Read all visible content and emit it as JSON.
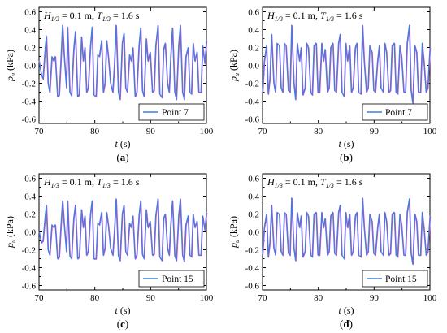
{
  "chart_data": [
    {
      "type": "line",
      "caption": "(a)",
      "annotation": {
        "H": "H",
        "H_sub": "1/3",
        "H_val": " = 0.1 m, ",
        "T": "T",
        "T_sub": "1/3",
        "T_val": " = 1.6 s"
      },
      "xlabel": "t (s)",
      "ylabel": "p_u (kPa)",
      "xlim": [
        70,
        100
      ],
      "ylim": [
        -0.65,
        0.65
      ],
      "xticks": [
        70,
        80,
        90,
        100
      ],
      "yticks": [
        -0.6,
        -0.4,
        -0.2,
        0.0,
        0.2,
        0.4,
        0.6
      ],
      "ytick_labels": [
        "-0.6",
        "-0.4",
        "-0.2",
        "0.0",
        "0.2",
        "0.4",
        "0.6"
      ],
      "legend_position": "bottom-right",
      "series": [
        {
          "name": "Point 7",
          "color": "#3f7fdc",
          "x": [
            70.0,
            70.4,
            70.7,
            71.1,
            71.3,
            71.6,
            71.9,
            72.3,
            72.6,
            72.9,
            73.3,
            73.6,
            73.9,
            74.2,
            74.5,
            74.9,
            75.1,
            75.5,
            75.8,
            76.2,
            76.5,
            76.9,
            77.2,
            77.6,
            77.9,
            78.2,
            78.5,
            78.8,
            79.2,
            79.5,
            79.8,
            80.2,
            80.5,
            80.8,
            81.2,
            81.5,
            81.8,
            82.1,
            82.4,
            82.8,
            83.2,
            83.5,
            83.8,
            84.2,
            84.5,
            84.9,
            85.2,
            85.5,
            85.8,
            86.2,
            86.5,
            86.8,
            87.2,
            87.5,
            87.9,
            88.2,
            88.5,
            88.8,
            89.2,
            89.5,
            89.9,
            90.3,
            90.6,
            90.9,
            91.3,
            91.6,
            92.0,
            92.3,
            92.6,
            93.0,
            93.3,
            93.6,
            93.9,
            94.3,
            94.6,
            95.0,
            95.3,
            95.7,
            96.0,
            96.3,
            96.7,
            97.0,
            97.3,
            97.6,
            97.9,
            98.3,
            98.6,
            99.0,
            99.3,
            99.7,
            100.0
          ],
          "y": [
            0.05,
            -0.1,
            -0.15,
            0.2,
            0.33,
            -0.2,
            -0.3,
            0.1,
            0.05,
            0.1,
            -0.35,
            -0.33,
            0.05,
            0.45,
            0.1,
            -0.25,
            0.43,
            -0.3,
            -0.34,
            0.18,
            0.38,
            -0.35,
            -0.33,
            0.32,
            0.05,
            0.2,
            -0.3,
            -0.25,
            0.22,
            0.43,
            -0.33,
            -0.35,
            0.12,
            0.1,
            0.28,
            -0.3,
            -0.2,
            0.28,
            0.1,
            -0.2,
            -0.3,
            0.02,
            0.45,
            -0.3,
            -0.38,
            0.25,
            0.36,
            -0.25,
            -0.3,
            0.12,
            0.05,
            0.2,
            -0.35,
            -0.3,
            0.22,
            0.42,
            -0.28,
            -0.35,
            0.3,
            0.05,
            0.15,
            -0.3,
            -0.28,
            0.22,
            0.45,
            -0.32,
            -0.36,
            0.18,
            0.25,
            -0.2,
            -0.3,
            0.12,
            0.42,
            -0.3,
            -0.38,
            0.22,
            0.45,
            -0.3,
            -0.38,
            0.1,
            0.2,
            -0.3,
            -0.32,
            0.25,
            0.05,
            0.15,
            -0.3,
            -0.3,
            0.22,
            0.02,
            0.28
          ]
        }
      ]
    },
    {
      "type": "line",
      "caption": "(b)",
      "annotation": {
        "H": "H",
        "H_sub": "1/3",
        "H_val": " = 0.1 m, ",
        "T": "T",
        "T_sub": "1/3",
        "T_val": " = 1.6 s"
      },
      "xlabel": "t (s)",
      "ylabel": "p_u (kPa)",
      "xlim": [
        70,
        100
      ],
      "ylim": [
        -0.65,
        0.65
      ],
      "xticks": [
        70,
        80,
        90,
        100
      ],
      "yticks": [
        -0.6,
        -0.4,
        -0.2,
        0.0,
        0.2,
        0.4,
        0.6
      ],
      "ytick_labels": [
        "-0.6",
        "-0.4",
        "-0.2",
        "0.0",
        "0.2",
        "0.4",
        "0.6"
      ],
      "legend_position": "bottom-right",
      "series": [
        {
          "name": "Point 7",
          "color": "#3f7fdc",
          "x": [
            70.0,
            70.3,
            70.7,
            71.0,
            71.3,
            71.6,
            72.0,
            72.3,
            72.6,
            73.0,
            73.3,
            73.6,
            73.9,
            74.2,
            74.6,
            74.9,
            75.2,
            75.6,
            75.9,
            76.2,
            76.6,
            76.9,
            77.2,
            77.6,
            77.9,
            78.2,
            78.6,
            78.9,
            79.2,
            79.6,
            79.9,
            80.2,
            80.6,
            80.9,
            81.2,
            81.6,
            81.9,
            82.2,
            82.6,
            82.9,
            83.2,
            83.6,
            83.9,
            84.2,
            84.6,
            84.9,
            85.2,
            85.6,
            85.9,
            86.2,
            86.6,
            86.9,
            87.2,
            87.6,
            87.9,
            88.2,
            88.6,
            88.9,
            89.2,
            89.6,
            89.9,
            90.2,
            90.6,
            90.9,
            91.2,
            91.6,
            91.9,
            92.2,
            92.6,
            92.9,
            93.2,
            93.6,
            93.9,
            94.2,
            94.6,
            94.9,
            95.3,
            95.6,
            95.9,
            96.3,
            96.6,
            96.9,
            97.3,
            97.6,
            97.9,
            98.3,
            98.6,
            98.9,
            99.3,
            99.6,
            100.0
          ],
          "y": [
            -0.3,
            0.05,
            0.22,
            -0.32,
            -0.15,
            0.35,
            -0.2,
            -0.3,
            0.25,
            0.22,
            -0.25,
            -0.3,
            0.25,
            0.22,
            -0.28,
            -0.3,
            0.45,
            -0.2,
            -0.38,
            0.25,
            0.05,
            0.2,
            -0.33,
            -0.25,
            0.25,
            0.2,
            -0.3,
            -0.33,
            0.22,
            0.25,
            -0.3,
            -0.3,
            0.25,
            0.05,
            0.18,
            -0.3,
            -0.25,
            0.2,
            0.25,
            -0.28,
            -0.3,
            0.25,
            0.35,
            -0.3,
            -0.35,
            0.25,
            0.05,
            0.22,
            -0.3,
            -0.25,
            0.2,
            0.25,
            -0.3,
            -0.32,
            0.45,
            0.05,
            -0.3,
            -0.25,
            0.22,
            0.15,
            -0.28,
            -0.3,
            0.05,
            0.22,
            -0.25,
            -0.3,
            0.25,
            0.15,
            -0.3,
            -0.28,
            0.22,
            0.25,
            -0.3,
            -0.32,
            0.22,
            0.1,
            -0.3,
            -0.3,
            0.25,
            0.45,
            -0.28,
            -0.42,
            0.22,
            0.15,
            -0.3,
            -0.3,
            0.25,
            0.05,
            -0.3,
            -0.25,
            0.2
          ]
        }
      ]
    },
    {
      "type": "line",
      "caption": "(c)",
      "annotation": {
        "H": "H",
        "H_sub": "1/3",
        "H_val": " = 0.1 m, ",
        "T": "T",
        "T_sub": "1/3",
        "T_val": " = 1.6 s"
      },
      "xlabel": "t (s)",
      "ylabel": "p_u (kPa)",
      "xlim": [
        70,
        100
      ],
      "ylim": [
        -0.65,
        0.65
      ],
      "xticks": [
        70,
        80,
        90,
        100
      ],
      "yticks": [
        -0.6,
        -0.4,
        -0.2,
        0.0,
        0.2,
        0.4,
        0.6
      ],
      "ytick_labels": [
        "-0.6",
        "-0.4",
        "-0.2",
        "0.0",
        "0.2",
        "0.4",
        "0.6"
      ],
      "legend_position": "bottom-right",
      "series": [
        {
          "name": "Point 15",
          "color": "#3f7fdc",
          "x": [
            70.0,
            70.4,
            70.7,
            71.1,
            71.3,
            71.6,
            71.9,
            72.3,
            72.6,
            72.9,
            73.3,
            73.6,
            73.9,
            74.2,
            74.5,
            74.9,
            75.1,
            75.5,
            75.8,
            76.2,
            76.5,
            76.9,
            77.2,
            77.6,
            77.9,
            78.2,
            78.5,
            78.8,
            79.2,
            79.5,
            79.8,
            80.2,
            80.5,
            80.8,
            81.2,
            81.5,
            81.8,
            82.1,
            82.4,
            82.8,
            83.2,
            83.5,
            83.8,
            84.2,
            84.5,
            84.9,
            85.2,
            85.5,
            85.8,
            86.2,
            86.5,
            86.8,
            87.2,
            87.5,
            87.9,
            88.2,
            88.5,
            88.8,
            89.2,
            89.5,
            89.9,
            90.3,
            90.6,
            90.9,
            91.3,
            91.6,
            92.0,
            92.3,
            92.6,
            93.0,
            93.3,
            93.6,
            93.9,
            94.3,
            94.6,
            95.0,
            95.3,
            95.7,
            96.0,
            96.3,
            96.7,
            97.0,
            97.3,
            97.6,
            97.9,
            98.3,
            98.6,
            99.0,
            99.3,
            99.7,
            100.0
          ],
          "y": [
            0.0,
            -0.12,
            -0.1,
            0.18,
            0.3,
            -0.2,
            -0.26,
            0.08,
            0.05,
            0.08,
            -0.3,
            -0.28,
            0.05,
            0.35,
            0.08,
            -0.22,
            0.35,
            -0.27,
            -0.3,
            0.15,
            0.3,
            -0.3,
            -0.28,
            0.25,
            0.05,
            0.18,
            -0.26,
            -0.22,
            0.2,
            0.35,
            -0.3,
            -0.3,
            0.1,
            0.08,
            0.22,
            -0.26,
            -0.18,
            0.22,
            0.08,
            -0.18,
            -0.26,
            0.02,
            0.37,
            -0.27,
            -0.32,
            0.2,
            0.3,
            -0.22,
            -0.26,
            0.1,
            0.05,
            0.18,
            -0.3,
            -0.26,
            0.18,
            0.35,
            -0.25,
            -0.3,
            0.25,
            0.05,
            0.12,
            -0.26,
            -0.25,
            0.18,
            0.37,
            -0.28,
            -0.32,
            0.15,
            0.2,
            -0.18,
            -0.26,
            0.1,
            0.35,
            -0.27,
            -0.32,
            0.18,
            0.37,
            -0.26,
            -0.33,
            0.08,
            0.18,
            -0.26,
            -0.28,
            0.2,
            0.05,
            0.12,
            -0.26,
            -0.26,
            0.18,
            0.02,
            0.22
          ]
        }
      ]
    },
    {
      "type": "line",
      "caption": "(d)",
      "annotation": {
        "H": "H",
        "H_sub": "1/3",
        "H_val": " = 0.1 m, ",
        "T": "T",
        "T_sub": "1/3",
        "T_val": " = 1.6 s"
      },
      "xlabel": "t (s)",
      "ylabel": "p_u (kPa)",
      "xlim": [
        70,
        100
      ],
      "ylim": [
        -0.65,
        0.65
      ],
      "xticks": [
        70,
        80,
        90,
        100
      ],
      "yticks": [
        -0.6,
        -0.4,
        -0.2,
        0.0,
        0.2,
        0.4,
        0.6
      ],
      "ytick_labels": [
        "-0.6",
        "-0.4",
        "-0.2",
        "0.0",
        "0.2",
        "0.4",
        "0.6"
      ],
      "legend_position": "bottom-right",
      "series": [
        {
          "name": "Point 15",
          "color": "#3f7fdc",
          "x": [
            70.0,
            70.3,
            70.7,
            71.0,
            71.3,
            71.6,
            72.0,
            72.3,
            72.6,
            73.0,
            73.3,
            73.6,
            73.9,
            74.2,
            74.6,
            74.9,
            75.2,
            75.6,
            75.9,
            76.2,
            76.6,
            76.9,
            77.2,
            77.6,
            77.9,
            78.2,
            78.6,
            78.9,
            79.2,
            79.6,
            79.9,
            80.2,
            80.6,
            80.9,
            81.2,
            81.6,
            81.9,
            82.2,
            82.6,
            82.9,
            83.2,
            83.6,
            83.9,
            84.2,
            84.6,
            84.9,
            85.2,
            85.6,
            85.9,
            86.2,
            86.6,
            86.9,
            87.2,
            87.6,
            87.9,
            88.2,
            88.6,
            88.9,
            89.2,
            89.6,
            89.9,
            90.2,
            90.6,
            90.9,
            91.2,
            91.6,
            91.9,
            92.2,
            92.6,
            92.9,
            93.2,
            93.6,
            93.9,
            94.2,
            94.6,
            94.9,
            95.3,
            95.6,
            95.9,
            96.3,
            96.6,
            96.9,
            97.3,
            97.6,
            97.9,
            98.3,
            98.6,
            98.9,
            99.3,
            99.6,
            100.0
          ],
          "y": [
            -0.25,
            0.05,
            0.2,
            -0.28,
            -0.12,
            0.3,
            -0.18,
            -0.26,
            0.22,
            0.2,
            -0.22,
            -0.26,
            0.22,
            0.2,
            -0.24,
            -0.26,
            0.38,
            -0.18,
            -0.32,
            0.22,
            0.05,
            0.18,
            -0.28,
            -0.22,
            0.22,
            0.18,
            -0.26,
            -0.28,
            0.2,
            0.22,
            -0.26,
            -0.26,
            0.22,
            0.05,
            0.15,
            -0.26,
            -0.22,
            0.18,
            0.22,
            -0.24,
            -0.26,
            0.22,
            0.3,
            -0.26,
            -0.3,
            0.22,
            0.05,
            0.2,
            -0.26,
            -0.22,
            0.18,
            0.22,
            -0.26,
            -0.28,
            0.38,
            0.05,
            -0.26,
            -0.22,
            0.2,
            0.12,
            -0.24,
            -0.26,
            0.05,
            0.2,
            -0.22,
            -0.26,
            0.22,
            0.12,
            -0.26,
            -0.24,
            0.2,
            0.22,
            -0.26,
            -0.28,
            0.2,
            0.08,
            -0.26,
            -0.26,
            0.22,
            0.37,
            -0.24,
            -0.36,
            0.2,
            0.12,
            -0.26,
            -0.26,
            0.22,
            0.05,
            -0.26,
            -0.22,
            0.18
          ]
        }
      ]
    }
  ]
}
